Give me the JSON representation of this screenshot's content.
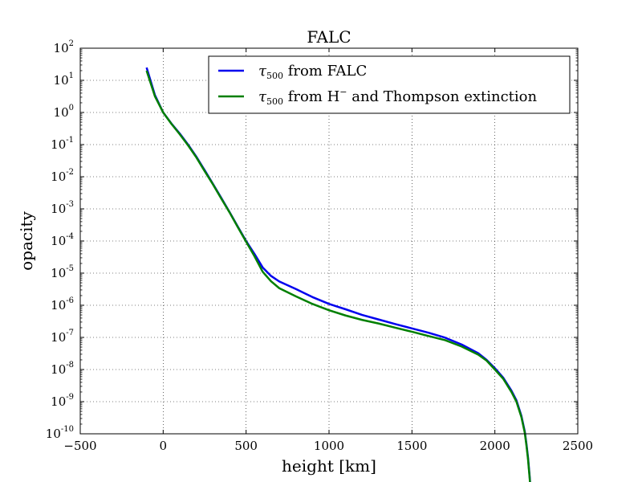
{
  "chart_data": {
    "type": "line",
    "title": "FALC",
    "xlabel": "height [km]",
    "ylabel": "opacity",
    "xlim": [
      -500,
      2500
    ],
    "ylim_exponent": [
      -10,
      2
    ],
    "yscale": "log",
    "grid": true,
    "legend_position": "top-right",
    "x_ticks": [
      "−500",
      "0",
      "500",
      "1000",
      "1500",
      "2000",
      "2500"
    ],
    "x_tick_values": [
      -500,
      0,
      500,
      1000,
      1500,
      2000,
      2500
    ],
    "y_ticks": [
      {
        "base": "10",
        "exp": "2"
      },
      {
        "base": "10",
        "exp": "1"
      },
      {
        "base": "10",
        "exp": "0"
      },
      {
        "base": "10",
        "exp": "-1"
      },
      {
        "base": "10",
        "exp": "-2"
      },
      {
        "base": "10",
        "exp": "-3"
      },
      {
        "base": "10",
        "exp": "-4"
      },
      {
        "base": "10",
        "exp": "-5"
      },
      {
        "base": "10",
        "exp": "-6"
      },
      {
        "base": "10",
        "exp": "-7"
      },
      {
        "base": "10",
        "exp": "-8"
      },
      {
        "base": "10",
        "exp": "-9"
      },
      {
        "base": "10",
        "exp": "-10"
      }
    ],
    "y_tick_exponents": [
      2,
      1,
      0,
      -1,
      -2,
      -3,
      -4,
      -5,
      -6,
      -7,
      -8,
      -9,
      -10
    ],
    "series": [
      {
        "legend": {
          "symbol": "τ",
          "sub": "500",
          "text": " from FALC"
        },
        "color": "#0000ee",
        "x": [
          -100,
          -50,
          0,
          50,
          100,
          150,
          200,
          250,
          300,
          350,
          400,
          450,
          500,
          550,
          600,
          650,
          700,
          800,
          900,
          1000,
          1100,
          1200,
          1300,
          1400,
          1500,
          1600,
          1700,
          1800,
          1900,
          1950,
          2000,
          2050,
          2100,
          2130,
          2160,
          2180,
          2190,
          2200,
          2205,
          2210,
          2215,
          2218
        ],
        "y": [
          25,
          3.5,
          1.0,
          0.45,
          0.22,
          0.1,
          0.042,
          0.016,
          0.006,
          0.0022,
          0.0008,
          0.00028,
          0.0001,
          4e-05,
          1.5e-05,
          8.2e-06,
          5.5e-06,
          3.2e-06,
          1.8e-06,
          1.1e-06,
          7.5e-07,
          5e-07,
          3.6e-07,
          2.6e-07,
          1.9e-07,
          1.4e-07,
          9.8e-08,
          6e-08,
          3.2e-08,
          2e-08,
          1.1e-08,
          5.6e-09,
          2.2e-09,
          1.1e-09,
          3.6e-10,
          1.2e-10,
          5e-11,
          1.8e-11,
          9e-12,
          4.5e-12,
          2e-12,
          8.5e-13
        ]
      },
      {
        "legend": {
          "symbol": "τ",
          "sub": "500",
          "text": " from H",
          "sup": "−",
          "text2": "  and Thompson extinction"
        },
        "color": "#007f00",
        "x": [
          -100,
          -50,
          0,
          50,
          100,
          150,
          200,
          250,
          300,
          350,
          400,
          450,
          500,
          550,
          600,
          650,
          700,
          800,
          900,
          1000,
          1100,
          1200,
          1300,
          1400,
          1500,
          1600,
          1700,
          1800,
          1900,
          1950,
          2000,
          2050,
          2100,
          2130,
          2160,
          2180,
          2190,
          2200,
          2205,
          2210,
          2215,
          2218
        ],
        "y": [
          20,
          3.2,
          1.0,
          0.44,
          0.21,
          0.095,
          0.04,
          0.015,
          0.0058,
          0.0021,
          0.00078,
          0.00027,
          9.5e-05,
          3.4e-05,
          1.1e-05,
          5.6e-06,
          3.4e-06,
          1.9e-06,
          1.1e-06,
          7e-07,
          4.8e-07,
          3.5e-07,
          2.7e-07,
          2e-07,
          1.5e-07,
          1.1e-07,
          8.2e-08,
          5.2e-08,
          2.9e-08,
          1.9e-08,
          1e-08,
          5.2e-09,
          2e-09,
          1e-09,
          3.3e-10,
          1.1e-10,
          4.5e-11,
          1.6e-11,
          8e-12,
          4e-12,
          1.8e-12,
          8e-13
        ]
      }
    ]
  }
}
